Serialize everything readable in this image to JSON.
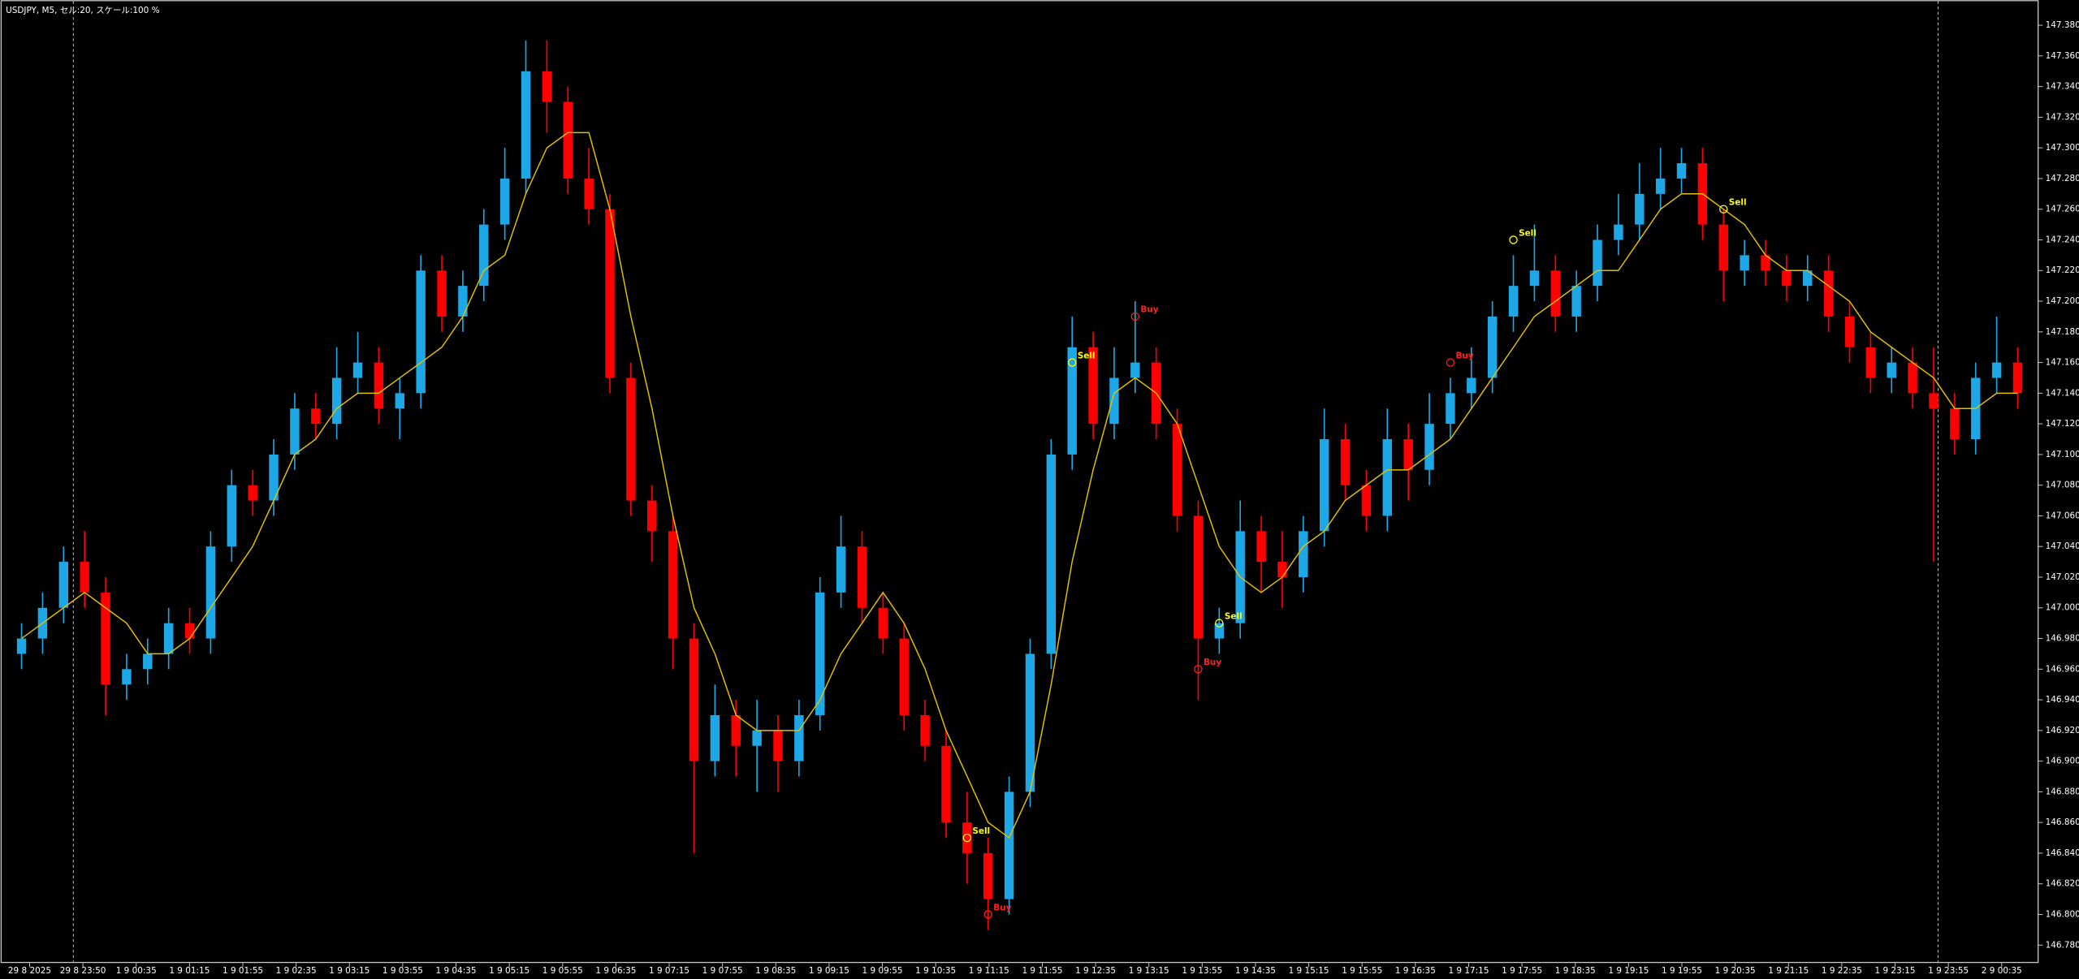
{
  "chart_data": {
    "type": "candlestick",
    "title": "USDJPY, M5, セル:20, スケール:100 %",
    "up_color": "#1ea7e6",
    "down_color": "#ff0000",
    "ma_color": "#e0c000",
    "ylim": [
      146.77,
      147.393
    ],
    "yticks": [
      {
        "value": 146.78,
        "label": "146.780"
      },
      {
        "value": 146.8,
        "label": "146.800"
      },
      {
        "value": 146.82,
        "label": "146.820"
      },
      {
        "value": 146.84,
        "label": "146.840"
      },
      {
        "value": 146.86,
        "label": "146.860"
      },
      {
        "value": 146.88,
        "label": "146.880"
      },
      {
        "value": 146.9,
        "label": "146.900"
      },
      {
        "value": 146.92,
        "label": "146.920"
      },
      {
        "value": 146.94,
        "label": "146.940"
      },
      {
        "value": 146.96,
        "label": "146.960"
      },
      {
        "value": 146.98,
        "label": "146.980"
      },
      {
        "value": 147.0,
        "label": "147.000"
      },
      {
        "value": 147.02,
        "label": "147.020"
      },
      {
        "value": 147.04,
        "label": "147.040"
      },
      {
        "value": 147.06,
        "label": "147.060"
      },
      {
        "value": 147.08,
        "label": "147.080"
      },
      {
        "value": 147.1,
        "label": "147.100"
      },
      {
        "value": 147.12,
        "label": "147.120"
      },
      {
        "value": 147.14,
        "label": "147.140"
      },
      {
        "value": 147.16,
        "label": "147.160"
      },
      {
        "value": 147.18,
        "label": "147.180"
      },
      {
        "value": 147.2,
        "label": "147.200"
      },
      {
        "value": 147.22,
        "label": "147.220"
      },
      {
        "value": 147.24,
        "label": "147.240"
      },
      {
        "value": 147.26,
        "label": "147.260"
      },
      {
        "value": 147.28,
        "label": "147.280"
      },
      {
        "value": 147.3,
        "label": "147.300"
      },
      {
        "value": 147.32,
        "label": "147.320"
      },
      {
        "value": 147.34,
        "label": "147.340"
      },
      {
        "value": 147.36,
        "label": "147.360"
      },
      {
        "value": 147.38,
        "label": "147.380"
      }
    ],
    "x_labels": [
      "29 8 2025",
      "29 8 23:50",
      "1 9 00:35",
      "1 9 01:15",
      "1 9 01:55",
      "1 9 02:35",
      "1 9 03:15",
      "1 9 03:55",
      "1 9 04:35",
      "1 9 05:15",
      "1 9 05:55",
      "1 9 06:35",
      "1 9 07:15",
      "1 9 07:55",
      "1 9 08:35",
      "1 9 09:15",
      "1 9 09:55",
      "1 9 10:35",
      "1 9 11:15",
      "1 9 11:55",
      "1 9 12:35",
      "1 9 13:15",
      "1 9 13:55",
      "1 9 14:35",
      "1 9 15:15",
      "1 9 15:55",
      "1 9 16:35",
      "1 9 17:15",
      "1 9 17:55",
      "1 9 18:35",
      "1 9 19:15",
      "1 9 19:55",
      "1 9 20:35",
      "1 9 21:15",
      "1 9 22:35",
      "1 9 23:15",
      "1 9 23:55",
      "2 9 00:35"
    ],
    "candles": [
      [
        146.97,
        146.99,
        146.96,
        146.98
      ],
      [
        146.98,
        147.01,
        146.97,
        147.0
      ],
      [
        147.0,
        147.04,
        146.99,
        147.03
      ],
      [
        147.03,
        147.05,
        147.0,
        147.01
      ],
      [
        147.01,
        147.02,
        146.93,
        146.95
      ],
      [
        146.95,
        146.97,
        146.94,
        146.96
      ],
      [
        146.96,
        146.98,
        146.95,
        146.97
      ],
      [
        146.97,
        147.0,
        146.96,
        146.99
      ],
      [
        146.99,
        147.0,
        146.97,
        146.98
      ],
      [
        146.98,
        147.05,
        146.97,
        147.04
      ],
      [
        147.04,
        147.09,
        147.03,
        147.08
      ],
      [
        147.08,
        147.09,
        147.06,
        147.07
      ],
      [
        147.07,
        147.11,
        147.06,
        147.1
      ],
      [
        147.1,
        147.14,
        147.09,
        147.13
      ],
      [
        147.13,
        147.14,
        147.11,
        147.12
      ],
      [
        147.12,
        147.17,
        147.11,
        147.15
      ],
      [
        147.15,
        147.18,
        147.14,
        147.16
      ],
      [
        147.16,
        147.17,
        147.12,
        147.13
      ],
      [
        147.13,
        147.15,
        147.11,
        147.14
      ],
      [
        147.14,
        147.23,
        147.13,
        147.22
      ],
      [
        147.22,
        147.23,
        147.18,
        147.19
      ],
      [
        147.19,
        147.22,
        147.18,
        147.21
      ],
      [
        147.21,
        147.26,
        147.2,
        147.25
      ],
      [
        147.25,
        147.3,
        147.24,
        147.28
      ],
      [
        147.28,
        147.37,
        147.27,
        147.35
      ],
      [
        147.35,
        147.37,
        147.31,
        147.33
      ],
      [
        147.33,
        147.34,
        147.27,
        147.28
      ],
      [
        147.28,
        147.3,
        147.25,
        147.26
      ],
      [
        147.26,
        147.27,
        147.14,
        147.15
      ],
      [
        147.15,
        147.16,
        147.06,
        147.07
      ],
      [
        147.07,
        147.08,
        147.03,
        147.05
      ],
      [
        147.05,
        147.06,
        146.96,
        146.98
      ],
      [
        146.98,
        146.99,
        146.84,
        146.9
      ],
      [
        146.9,
        146.95,
        146.89,
        146.93
      ],
      [
        146.93,
        146.94,
        146.89,
        146.91
      ],
      [
        146.91,
        146.94,
        146.88,
        146.92
      ],
      [
        146.92,
        146.93,
        146.88,
        146.9
      ],
      [
        146.9,
        146.94,
        146.89,
        146.93
      ],
      [
        146.93,
        147.02,
        146.92,
        147.01
      ],
      [
        147.01,
        147.06,
        147.0,
        147.04
      ],
      [
        147.04,
        147.05,
        146.99,
        147.0
      ],
      [
        147.0,
        147.01,
        146.97,
        146.98
      ],
      [
        146.98,
        146.99,
        146.92,
        146.93
      ],
      [
        146.93,
        146.94,
        146.9,
        146.91
      ],
      [
        146.91,
        146.92,
        146.85,
        146.86
      ],
      [
        146.86,
        146.88,
        146.82,
        146.84
      ],
      [
        146.84,
        146.85,
        146.79,
        146.81
      ],
      [
        146.81,
        146.89,
        146.8,
        146.88
      ],
      [
        146.88,
        146.98,
        146.87,
        146.97
      ],
      [
        146.97,
        147.11,
        146.96,
        147.1
      ],
      [
        147.1,
        147.19,
        147.09,
        147.17
      ],
      [
        147.17,
        147.18,
        147.11,
        147.12
      ],
      [
        147.12,
        147.17,
        147.11,
        147.15
      ],
      [
        147.15,
        147.2,
        147.14,
        147.16
      ],
      [
        147.16,
        147.17,
        147.11,
        147.12
      ],
      [
        147.12,
        147.13,
        147.05,
        147.06
      ],
      [
        147.06,
        147.07,
        146.94,
        146.98
      ],
      [
        146.98,
        147.0,
        146.97,
        146.99
      ],
      [
        146.99,
        147.07,
        146.98,
        147.05
      ],
      [
        147.05,
        147.06,
        147.01,
        147.03
      ],
      [
        147.03,
        147.05,
        147.0,
        147.02
      ],
      [
        147.02,
        147.06,
        147.01,
        147.05
      ],
      [
        147.05,
        147.13,
        147.04,
        147.11
      ],
      [
        147.11,
        147.12,
        147.07,
        147.08
      ],
      [
        147.08,
        147.09,
        147.05,
        147.06
      ],
      [
        147.06,
        147.13,
        147.05,
        147.11
      ],
      [
        147.11,
        147.12,
        147.07,
        147.09
      ],
      [
        147.09,
        147.14,
        147.08,
        147.12
      ],
      [
        147.12,
        147.15,
        147.11,
        147.14
      ],
      [
        147.14,
        147.17,
        147.13,
        147.15
      ],
      [
        147.15,
        147.2,
        147.14,
        147.19
      ],
      [
        147.19,
        147.23,
        147.18,
        147.21
      ],
      [
        147.21,
        147.25,
        147.2,
        147.22
      ],
      [
        147.22,
        147.23,
        147.18,
        147.19
      ],
      [
        147.19,
        147.22,
        147.18,
        147.21
      ],
      [
        147.21,
        147.25,
        147.2,
        147.24
      ],
      [
        147.24,
        147.27,
        147.23,
        147.25
      ],
      [
        147.25,
        147.29,
        147.24,
        147.27
      ],
      [
        147.27,
        147.3,
        147.26,
        147.28
      ],
      [
        147.28,
        147.3,
        147.27,
        147.29
      ],
      [
        147.29,
        147.3,
        147.24,
        147.25
      ],
      [
        147.25,
        147.26,
        147.2,
        147.22
      ],
      [
        147.22,
        147.24,
        147.21,
        147.23
      ],
      [
        147.23,
        147.24,
        147.21,
        147.22
      ],
      [
        147.22,
        147.23,
        147.2,
        147.21
      ],
      [
        147.21,
        147.23,
        147.2,
        147.22
      ],
      [
        147.22,
        147.23,
        147.18,
        147.19
      ],
      [
        147.19,
        147.2,
        147.16,
        147.17
      ],
      [
        147.17,
        147.18,
        147.14,
        147.15
      ],
      [
        147.15,
        147.17,
        147.14,
        147.16
      ],
      [
        147.16,
        147.17,
        147.13,
        147.14
      ],
      [
        147.14,
        147.17,
        147.03,
        147.13
      ],
      [
        147.13,
        147.14,
        147.1,
        147.11
      ],
      [
        147.11,
        147.16,
        147.1,
        147.15
      ],
      [
        147.15,
        147.19,
        147.14,
        147.16
      ],
      [
        147.16,
        147.17,
        147.13,
        147.14
      ]
    ],
    "ma": [
      146.98,
      146.99,
      147.0,
      147.01,
      147.0,
      146.99,
      146.97,
      146.97,
      146.98,
      147.0,
      147.02,
      147.04,
      147.07,
      147.1,
      147.11,
      147.13,
      147.14,
      147.14,
      147.15,
      147.16,
      147.17,
      147.19,
      147.22,
      147.23,
      147.27,
      147.3,
      147.31,
      147.31,
      147.26,
      147.19,
      147.13,
      147.06,
      147.0,
      146.97,
      146.93,
      146.92,
      146.92,
      146.92,
      146.94,
      146.97,
      146.99,
      147.01,
      146.99,
      146.96,
      146.92,
      146.89,
      146.86,
      146.85,
      146.88,
      146.95,
      147.03,
      147.09,
      147.14,
      147.15,
      147.14,
      147.12,
      147.08,
      147.04,
      147.02,
      147.01,
      147.02,
      147.04,
      147.05,
      147.07,
      147.08,
      147.09,
      147.09,
      147.1,
      147.11,
      147.13,
      147.15,
      147.17,
      147.19,
      147.2,
      147.21,
      147.22,
      147.22,
      147.24,
      147.26,
      147.27,
      147.27,
      147.26,
      147.25,
      147.23,
      147.22,
      147.22,
      147.21,
      147.2,
      147.18,
      147.17,
      147.16,
      147.15,
      147.13,
      147.13,
      147.14,
      147.14
    ],
    "signals": [
      {
        "label": "Sell",
        "index": 45,
        "value": 146.85,
        "color": "#ffff00"
      },
      {
        "label": "Buy",
        "index": 46,
        "value": 146.8,
        "color": "#ff2020"
      },
      {
        "label": "Sell",
        "index": 50,
        "value": 147.16,
        "color": "#ffff00"
      },
      {
        "label": "Buy",
        "index": 53,
        "value": 147.19,
        "color": "#ff2020"
      },
      {
        "label": "Buy",
        "index": 56,
        "value": 146.96,
        "color": "#ff2020"
      },
      {
        "label": "Sell",
        "index": 57,
        "value": 146.99,
        "color": "#ffff00"
      },
      {
        "label": "Buy",
        "index": 68,
        "value": 147.16,
        "color": "#ff2020"
      },
      {
        "label": "Sell",
        "index": 71,
        "value": 147.24,
        "color": "#ffff00"
      },
      {
        "label": "Sell",
        "index": 81,
        "value": 147.26,
        "color": "#ffff00"
      }
    ]
  }
}
